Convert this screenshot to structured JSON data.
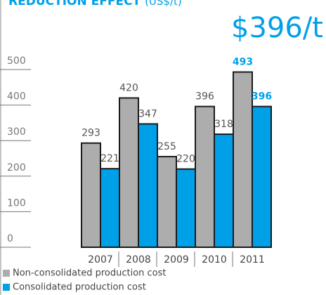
{
  "chart_data": {
    "type": "bar",
    "title": "REDUCTION EFFECT",
    "unit": "(US$/t)",
    "headline": "$396/t",
    "categories": [
      "2007",
      "2008",
      "2009",
      "2010",
      "2011"
    ],
    "series": [
      {
        "name": "Non-consolidated production cost",
        "color": "#adadad",
        "values": [
          293,
          420,
          255,
          396,
          493
        ]
      },
      {
        "name": "Consolidated production cost",
        "color": "#00a0e9",
        "values": [
          221,
          347,
          220,
          318,
          396
        ]
      }
    ],
    "ylim": [
      0,
      500
    ],
    "yticks": [
      0,
      100,
      200,
      300,
      400,
      500
    ]
  }
}
